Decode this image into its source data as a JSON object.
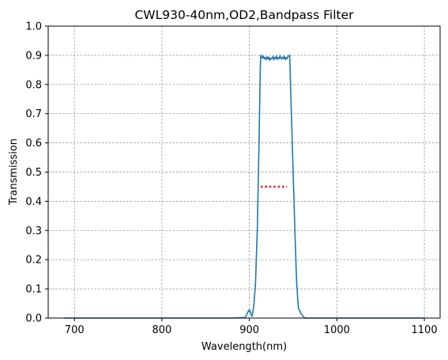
{
  "chart_data": {
    "type": "line",
    "title": "CWL930-40nm,OD2,Bandpass Filter",
    "xlabel": "Wavelength(nm)",
    "ylabel": "Transmission",
    "xlim": [
      670,
      1118
    ],
    "ylim": [
      0,
      1.0
    ],
    "xticks": [
      700,
      800,
      900,
      1000,
      1100
    ],
    "xtick_labels": [
      "700",
      "800",
      "900",
      "1000",
      "1100"
    ],
    "yticks": [
      0,
      0.1,
      0.2,
      0.3,
      0.4,
      0.5,
      0.6,
      0.7,
      0.8,
      0.9,
      1.0
    ],
    "ytick_labels": [
      "0.0",
      "0.1",
      "0.2",
      "0.3",
      "0.4",
      "0.5",
      "0.6",
      "0.7",
      "0.8",
      "0.9",
      "1.0"
    ],
    "grid": true,
    "series": [
      {
        "color": "#1f77b4",
        "style": "solid",
        "x": [
          688,
          880,
          895,
          897,
          899,
          900,
          901,
          902,
          903,
          905,
          907,
          909,
          910,
          911,
          912,
          912.5,
          913,
          914,
          915,
          916,
          917,
          918,
          919,
          920,
          921,
          922,
          923,
          924,
          925,
          926,
          927,
          928,
          929,
          930,
          931,
          932,
          933,
          934,
          935,
          936,
          937,
          938,
          939,
          940,
          941,
          942,
          943,
          944,
          945,
          946,
          946.5,
          947,
          948,
          950,
          952,
          954,
          956,
          957,
          958,
          959,
          960,
          961,
          962,
          963,
          965,
          1100
        ],
        "y": [
          0,
          0,
          0.002,
          0.012,
          0.025,
          0.028,
          0.022,
          0.012,
          0.006,
          0.04,
          0.12,
          0.3,
          0.45,
          0.6,
          0.78,
          0.86,
          0.9,
          0.895,
          0.89,
          0.898,
          0.888,
          0.892,
          0.885,
          0.895,
          0.888,
          0.894,
          0.883,
          0.891,
          0.887,
          0.89,
          0.896,
          0.884,
          0.893,
          0.889,
          0.897,
          0.886,
          0.892,
          0.888,
          0.899,
          0.89,
          0.887,
          0.894,
          0.889,
          0.897,
          0.885,
          0.892,
          0.888,
          0.896,
          0.898,
          0.9,
          0.86,
          0.8,
          0.7,
          0.5,
          0.3,
          0.12,
          0.035,
          0.028,
          0.022,
          0.016,
          0.012,
          0.008,
          0.004,
          0.001,
          0,
          0
        ]
      },
      {
        "color": "#ff0000",
        "style": "dotted",
        "x": [
          913,
          943
        ],
        "y": [
          0.45,
          0.45
        ]
      }
    ]
  }
}
